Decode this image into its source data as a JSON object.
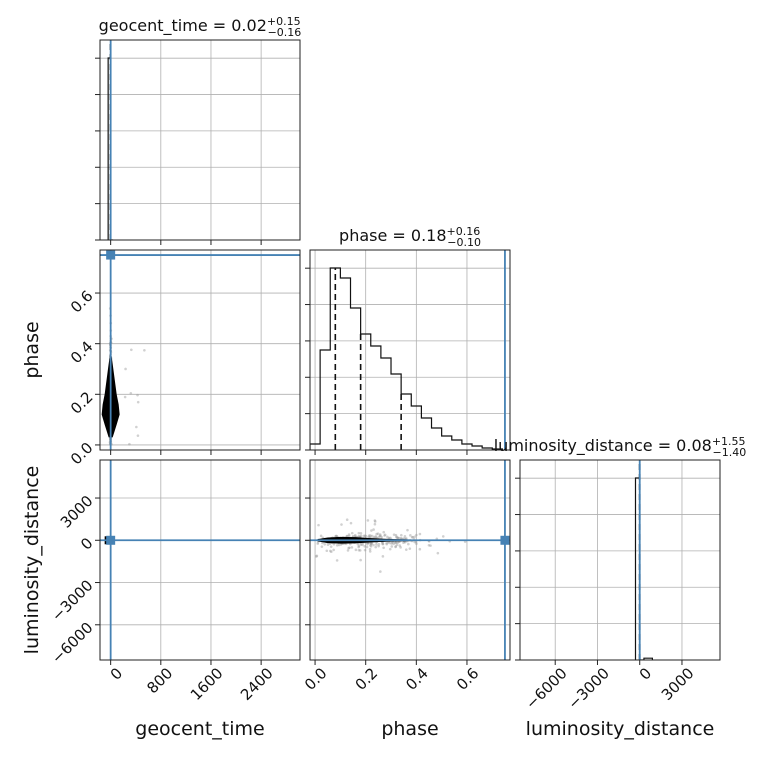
{
  "chart_data": {
    "type": "corner",
    "parameters": [
      "geocent_time",
      "phase",
      "luminosity_distance"
    ],
    "titles": [
      {
        "param": "geocent_time",
        "median": "0.02",
        "plus": "+0.15",
        "minus": "−0.16"
      },
      {
        "param": "phase",
        "median": "0.18",
        "plus": "+0.16",
        "minus": "−0.10"
      },
      {
        "param": "luminosity_distance",
        "median": "0.08",
        "plus": "+1.55",
        "minus": "−1.40"
      }
    ],
    "axis_labels": {
      "geocent_time": "geocent_time",
      "phase": "phase",
      "luminosity_distance": "luminosity_distance"
    },
    "ranges": {
      "geocent_time": [
        -170,
        3020
      ],
      "phase": [
        -0.02,
        0.77
      ],
      "luminosity_distance": [
        -8500,
        5700
      ]
    },
    "ticks": {
      "geocent_time": [
        {
          "value": 0,
          "label": "0"
        },
        {
          "value": 800,
          "label": "800"
        },
        {
          "value": 1600,
          "label": "1600"
        },
        {
          "value": 2400,
          "label": "2400"
        }
      ],
      "phase_x": [
        {
          "value": 0.0,
          "label": "0.0"
        },
        {
          "value": 0.2,
          "label": "0.2"
        },
        {
          "value": 0.4,
          "label": "0.4"
        },
        {
          "value": 0.6,
          "label": "0.6"
        }
      ],
      "phase_y": [
        {
          "value": 0.0,
          "label": "0.0"
        },
        {
          "value": 0.2,
          "label": "0.2"
        },
        {
          "value": 0.4,
          "label": "0.4"
        },
        {
          "value": 0.6,
          "label": "0.6"
        }
      ],
      "luminosity_distance_x": [
        {
          "value": -6000,
          "label": "−6000"
        },
        {
          "value": -3000,
          "label": "−3000"
        },
        {
          "value": 0,
          "label": "0"
        },
        {
          "value": 3000,
          "label": "3000"
        }
      ],
      "luminosity_distance_y": [
        {
          "value": -6000,
          "label": "−6000"
        },
        {
          "value": -3000,
          "label": "−3000"
        },
        {
          "value": 0,
          "label": "0"
        },
        {
          "value": 3000,
          "label": "3000"
        }
      ]
    },
    "truths": {
      "geocent_time": 0,
      "phase": 0.75,
      "luminosity_distance": 0
    },
    "quantiles": {
      "geocent_time": [
        -0.14,
        0.02,
        0.17
      ],
      "phase": [
        0.08,
        0.18,
        0.34
      ],
      "luminosity_distance": [
        -1.32,
        0.08,
        1.63
      ]
    },
    "histograms": {
      "geocent_time": {
        "edges": [
          -40,
          0,
          40
        ],
        "counts": [
          1.0,
          0.0
        ]
      },
      "phase": {
        "edges": [
          -0.02,
          0.02,
          0.06,
          0.1,
          0.14,
          0.18,
          0.22,
          0.26,
          0.3,
          0.34,
          0.38,
          0.42,
          0.46,
          0.5,
          0.54,
          0.58,
          0.62,
          0.66,
          0.7,
          0.74
        ],
        "counts": [
          0.03,
          0.5,
          0.91,
          0.86,
          0.71,
          0.58,
          0.52,
          0.46,
          0.38,
          0.28,
          0.22,
          0.16,
          0.11,
          0.07,
          0.05,
          0.03,
          0.02,
          0.01,
          0.005
        ]
      },
      "luminosity_distance": {
        "edges": [
          -300,
          0,
          300,
          900
        ],
        "counts": [
          1.0,
          0.0,
          0.01
        ]
      }
    },
    "grid": true
  }
}
